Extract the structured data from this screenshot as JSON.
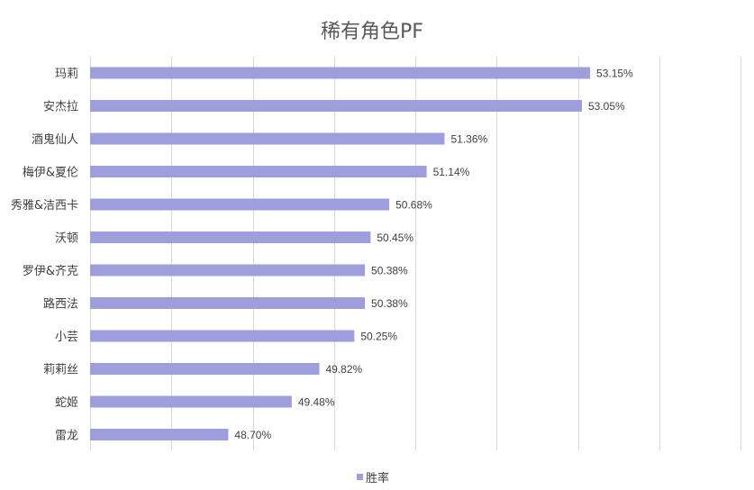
{
  "chart_data": {
    "type": "bar",
    "orientation": "horizontal",
    "title": "稀有角色PF",
    "categories": [
      "玛莉",
      "安杰拉",
      "酒鬼仙人",
      "梅伊&夏伦",
      "秀雅&洁西卡",
      "沃顿",
      "罗伊&齐克",
      "路西法",
      "小芸",
      "莉莉丝",
      "蛇姬",
      "雷龙"
    ],
    "series": [
      {
        "name": "胜率",
        "values": [
          53.15,
          53.05,
          51.36,
          51.14,
          50.68,
          50.45,
          50.38,
          50.38,
          50.25,
          49.82,
          49.48,
          48.7
        ],
        "labels": [
          "53.15%",
          "53.05%",
          "51.36%",
          "51.14%",
          "50.68%",
          "50.45%",
          "50.38%",
          "50.38%",
          "50.25%",
          "49.82%",
          "49.48%",
          "48.70%"
        ],
        "color": "#9e9edd"
      }
    ],
    "xlim": [
      47.0,
      55.0
    ],
    "grid": true,
    "legend_position": "bottom"
  }
}
